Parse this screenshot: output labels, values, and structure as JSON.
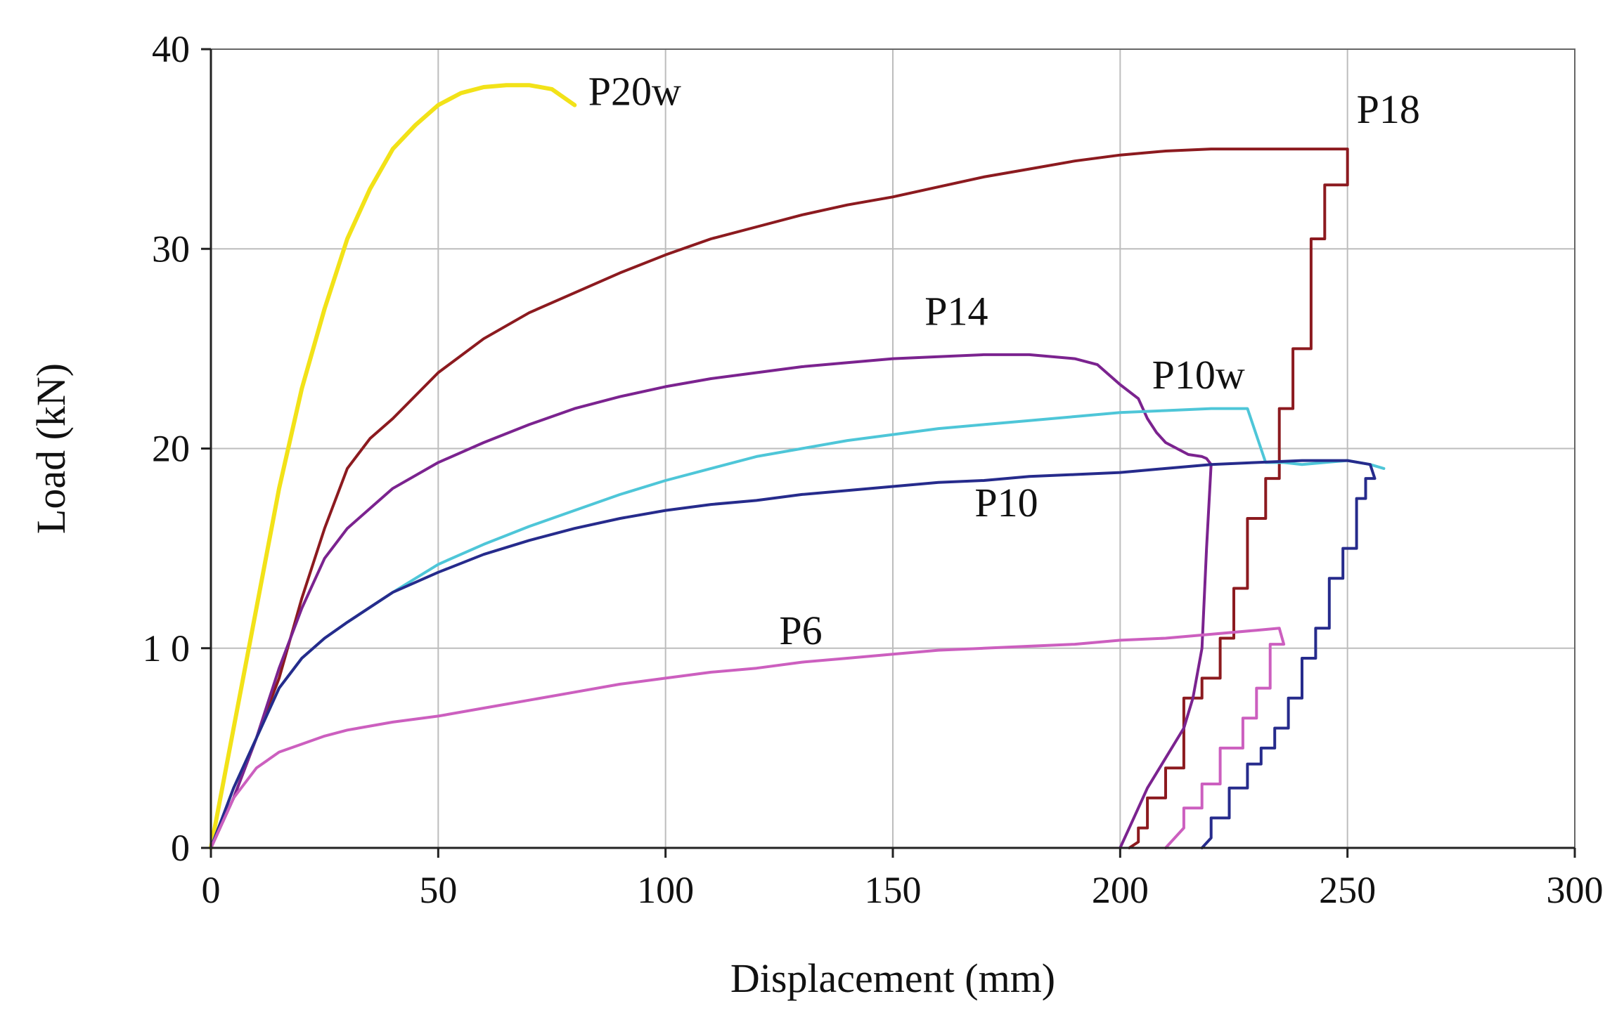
{
  "chart_data": {
    "type": "line",
    "title": "",
    "xlabel": "Displacement (mm)",
    "ylabel": "Load (kN)",
    "xlim": [
      0,
      300
    ],
    "ylim": [
      0,
      40
    ],
    "x_ticks": [
      0,
      50,
      100,
      150,
      200,
      250,
      300
    ],
    "x_tick_labels": [
      "0",
      "50",
      "100",
      "150",
      "200",
      "250",
      "300"
    ],
    "y_ticks": [
      0,
      10,
      20,
      30,
      40
    ],
    "y_tick_labels": [
      "0",
      "1 0",
      "20",
      "30",
      "40"
    ],
    "grid": true,
    "series": [
      {
        "name": "P20w",
        "label": "P20w",
        "color": "#f2e218",
        "width": 6,
        "label_at": [
          83,
          37.2
        ],
        "x": [
          0,
          5,
          10,
          15,
          20,
          25,
          30,
          35,
          40,
          45,
          50,
          55,
          60,
          65,
          70,
          75,
          80
        ],
        "y": [
          0,
          6,
          12,
          18,
          23,
          27,
          30.5,
          33,
          35,
          36.2,
          37.2,
          37.8,
          38.1,
          38.2,
          38.2,
          38,
          37.2
        ]
      },
      {
        "name": "P18",
        "label": "P18",
        "color": "#8c1a1f",
        "width": 4,
        "label_at": [
          252,
          36.3
        ],
        "x": [
          0,
          5,
          10,
          15,
          20,
          25,
          30,
          35,
          40,
          50,
          60,
          70,
          80,
          90,
          100,
          110,
          120,
          130,
          140,
          150,
          160,
          170,
          180,
          190,
          200,
          210,
          220,
          230,
          240,
          245,
          250,
          250,
          247,
          245,
          245,
          242,
          242,
          238,
          238,
          235,
          235,
          232,
          232,
          228,
          228,
          225,
          225,
          222,
          222,
          218,
          218,
          214,
          214,
          210,
          210,
          206,
          206,
          204,
          204,
          202
        ],
        "y": [
          0,
          2.5,
          5.5,
          8.5,
          12.5,
          16,
          19,
          20.5,
          21.5,
          23.8,
          25.5,
          26.8,
          27.8,
          28.8,
          29.7,
          30.5,
          31.1,
          31.7,
          32.2,
          32.6,
          33.1,
          33.6,
          34,
          34.4,
          34.7,
          34.9,
          35,
          35,
          35,
          35,
          35,
          33.2,
          33.2,
          33.2,
          30.5,
          30.5,
          25,
          25,
          22,
          22,
          18.5,
          18.5,
          16.5,
          16.5,
          13,
          13,
          10.5,
          10.5,
          8.5,
          8.5,
          7.5,
          7.5,
          4,
          4,
          2.5,
          2.5,
          1,
          1,
          0.3,
          0
        ]
      },
      {
        "name": "P14",
        "label": "P14",
        "color": "#7b238f",
        "width": 4,
        "label_at": [
          157,
          26.2
        ],
        "x": [
          0,
          5,
          10,
          15,
          20,
          25,
          30,
          40,
          50,
          60,
          70,
          80,
          90,
          100,
          110,
          120,
          130,
          140,
          150,
          160,
          170,
          180,
          190,
          195,
          200,
          204,
          206,
          208,
          210,
          215,
          218,
          219,
          220,
          219,
          218,
          216,
          214,
          210,
          206,
          204,
          202,
          200
        ],
        "y": [
          0,
          2.5,
          5.5,
          9,
          12,
          14.5,
          16,
          18,
          19.3,
          20.3,
          21.2,
          22,
          22.6,
          23.1,
          23.5,
          23.8,
          24.1,
          24.3,
          24.5,
          24.6,
          24.7,
          24.7,
          24.5,
          24.2,
          23.2,
          22.5,
          21.5,
          20.8,
          20.3,
          19.7,
          19.6,
          19.5,
          19.2,
          15,
          10,
          7.5,
          6,
          4.5,
          3,
          2,
          1,
          0
        ]
      },
      {
        "name": "P10w",
        "label": "P10w",
        "color": "#4ec6d8",
        "width": 4,
        "label_at": [
          207,
          23
        ],
        "x": [
          0,
          5,
          10,
          15,
          20,
          25,
          30,
          40,
          50,
          60,
          70,
          80,
          90,
          100,
          110,
          120,
          130,
          140,
          150,
          160,
          170,
          180,
          190,
          200,
          210,
          220,
          228,
          232,
          236,
          240,
          245,
          250,
          255,
          258
        ],
        "y": [
          0,
          3,
          5.5,
          8,
          9.5,
          10.5,
          11.3,
          12.8,
          14.2,
          15.2,
          16.1,
          16.9,
          17.7,
          18.4,
          19,
          19.6,
          20,
          20.4,
          20.7,
          21,
          21.2,
          21.4,
          21.6,
          21.8,
          21.9,
          22,
          22,
          19.3,
          19.3,
          19.2,
          19.3,
          19.4,
          19.2,
          19
        ]
      },
      {
        "name": "P10",
        "label": "P10",
        "color": "#262b8c",
        "width": 4,
        "label_at": [
          168,
          16.6
        ],
        "x": [
          0,
          5,
          10,
          15,
          20,
          25,
          30,
          40,
          50,
          60,
          70,
          80,
          90,
          100,
          110,
          120,
          130,
          140,
          150,
          160,
          170,
          180,
          190,
          200,
          210,
          220,
          230,
          240,
          250,
          255,
          256,
          254,
          254,
          252,
          252,
          249,
          249,
          246,
          246,
          243,
          243,
          240,
          240,
          237,
          237,
          234,
          234,
          231,
          231,
          228,
          228,
          224,
          224,
          220,
          220,
          218
        ],
        "y": [
          0,
          3,
          5.5,
          8,
          9.5,
          10.5,
          11.3,
          12.8,
          13.8,
          14.7,
          15.4,
          16,
          16.5,
          16.9,
          17.2,
          17.4,
          17.7,
          17.9,
          18.1,
          18.3,
          18.4,
          18.6,
          18.7,
          18.8,
          19,
          19.2,
          19.3,
          19.4,
          19.4,
          19.2,
          18.5,
          18.5,
          17.5,
          17.5,
          15,
          15,
          13.5,
          13.5,
          11,
          11,
          9.5,
          9.5,
          7.5,
          7.5,
          6,
          6,
          5,
          5,
          4.2,
          4.2,
          3,
          3,
          1.5,
          1.5,
          0.5,
          0
        ]
      },
      {
        "name": "P6",
        "label": "P6",
        "color": "#cc5fbf",
        "width": 4,
        "label_at": [
          125,
          10.2
        ],
        "x": [
          0,
          5,
          10,
          15,
          20,
          25,
          30,
          40,
          50,
          60,
          70,
          80,
          90,
          100,
          110,
          120,
          130,
          140,
          150,
          160,
          170,
          180,
          190,
          200,
          210,
          220,
          230,
          235,
          236,
          233,
          233,
          230,
          230,
          227,
          227,
          222,
          222,
          218,
          218,
          214,
          214,
          210
        ],
        "y": [
          0,
          2.5,
          4,
          4.8,
          5.2,
          5.6,
          5.9,
          6.3,
          6.6,
          7,
          7.4,
          7.8,
          8.2,
          8.5,
          8.8,
          9,
          9.3,
          9.5,
          9.7,
          9.9,
          10,
          10.1,
          10.2,
          10.4,
          10.5,
          10.7,
          10.9,
          11,
          10.2,
          10.2,
          8,
          8,
          6.5,
          6.5,
          5,
          5,
          3.2,
          3.2,
          2,
          2,
          1,
          0
        ]
      }
    ]
  }
}
